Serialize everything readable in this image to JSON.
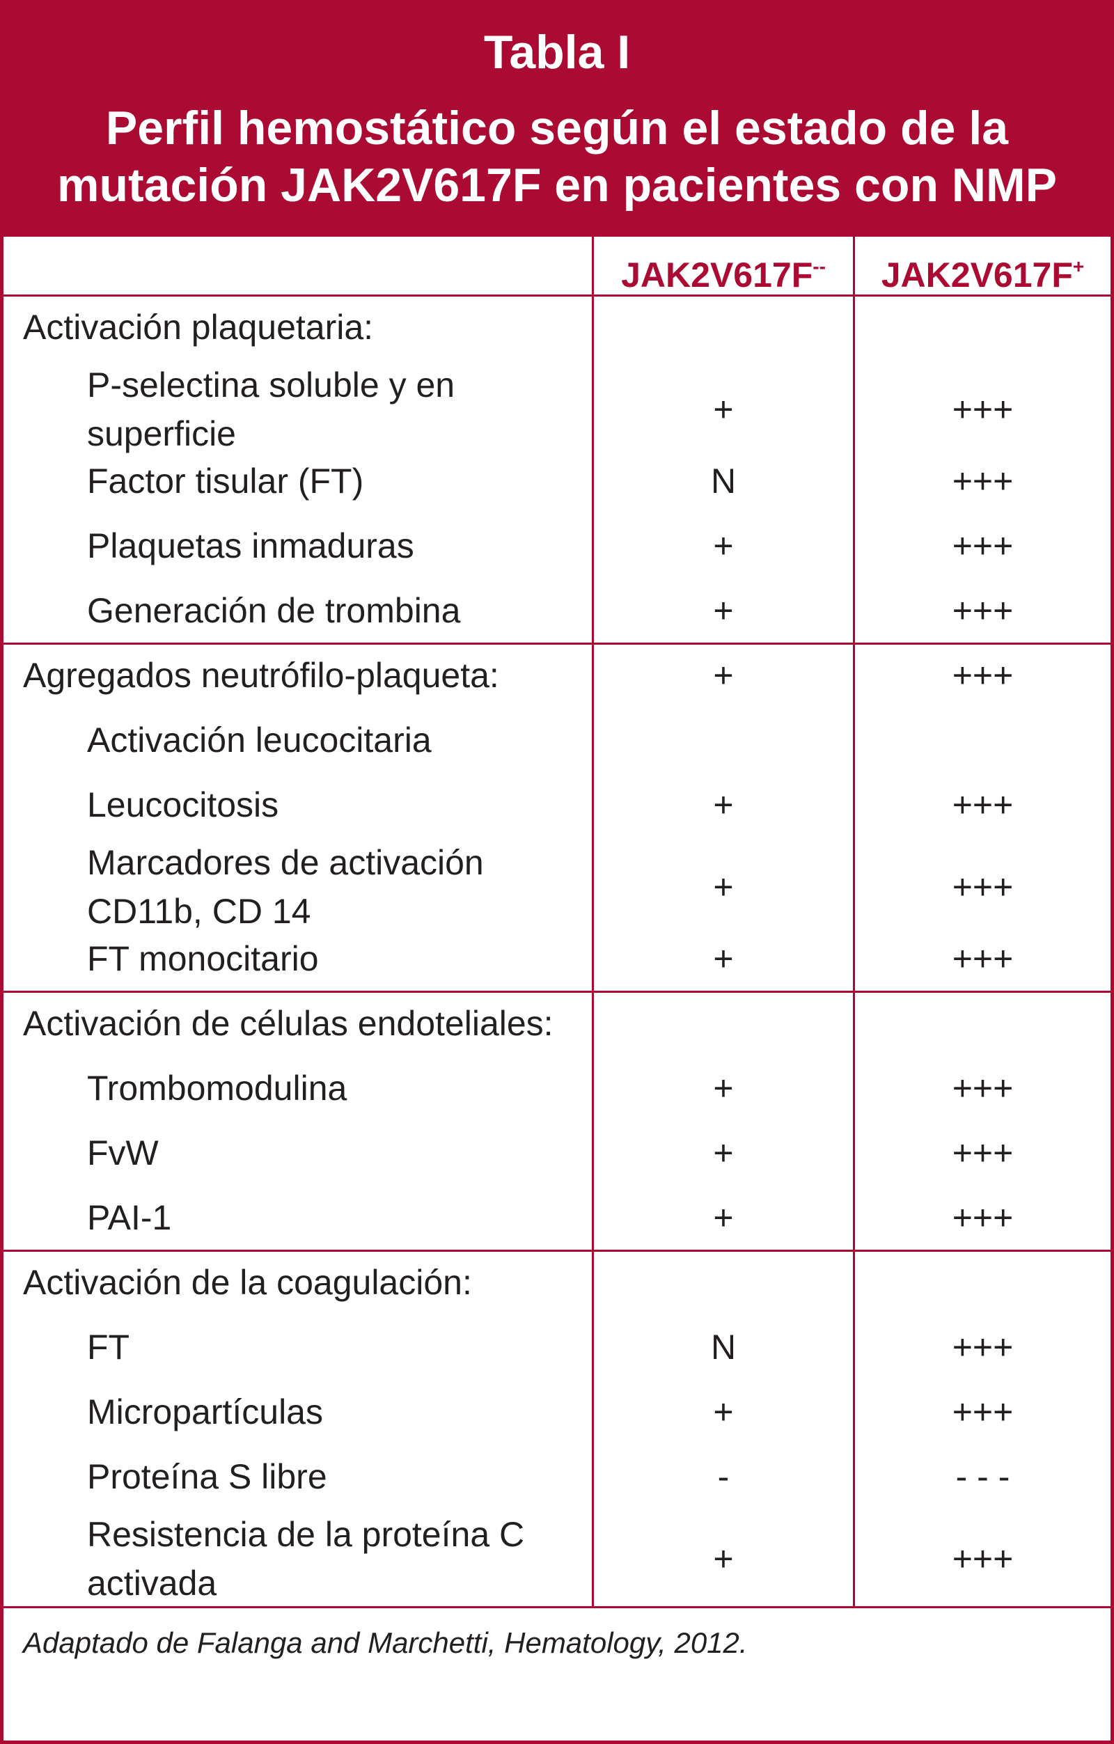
{
  "title": {
    "line1": "Tabla I",
    "line2": "Perfil hemostático según el estado de la",
    "line3": "mutación JAK2V617F en pacientes con NMP"
  },
  "header": {
    "col1": "",
    "col2_base": "JAK2V617F",
    "col2_sup": "--",
    "col3_base": "JAK2V617F",
    "col3_sup": "+"
  },
  "sections": [
    {
      "label": "Activación plaquetaria:",
      "neg": "",
      "pos": "",
      "items": [
        {
          "label": "P-selectina soluble y en superficie",
          "neg": "+",
          "pos": "+++"
        },
        {
          "label": "Factor tisular (FT)",
          "neg": "N",
          "pos": "+++"
        },
        {
          "label": "Plaquetas inmaduras",
          "neg": "+",
          "pos": "+++"
        },
        {
          "label": "Generación de trombina",
          "neg": "+",
          "pos": "+++"
        }
      ]
    },
    {
      "label": "Agregados neutrófilo-plaqueta:",
      "neg": "+",
      "pos": "+++",
      "items": [
        {
          "label": "Activación leucocitaria",
          "neg": "",
          "pos": ""
        },
        {
          "label": "Leucocitosis",
          "neg": "+",
          "pos": "+++"
        },
        {
          "label": "Marcadores de activación CD11b, CD 14",
          "neg": "+",
          "pos": "+++"
        },
        {
          "label": "FT monocitario",
          "neg": "+",
          "pos": "+++"
        }
      ]
    },
    {
      "label": "Activación de células endoteliales:",
      "neg": "",
      "pos": "",
      "items": [
        {
          "label": "Trombomodulina",
          "neg": "+",
          "pos": "+++"
        },
        {
          "label": "FvW",
          "neg": "+",
          "pos": "+++"
        },
        {
          "label": "PAI-1",
          "neg": "+",
          "pos": "+++"
        }
      ]
    },
    {
      "label": "Activación de la coagulación:",
      "neg": "",
      "pos": "",
      "items": [
        {
          "label": "FT",
          "neg": "N",
          "pos": "+++"
        },
        {
          "label": "Micropartículas",
          "neg": "+",
          "pos": "+++"
        },
        {
          "label": "Proteína S libre",
          "neg": "-",
          "pos": "- - -"
        },
        {
          "label": "Resistencia de la proteína C activada",
          "neg": "+",
          "pos": "+++"
        }
      ]
    }
  ],
  "source": "Adaptado de Falanga and Marchetti, Hematology, 2012.",
  "colors": {
    "accent": "#ab0a33",
    "text": "#231f20"
  }
}
